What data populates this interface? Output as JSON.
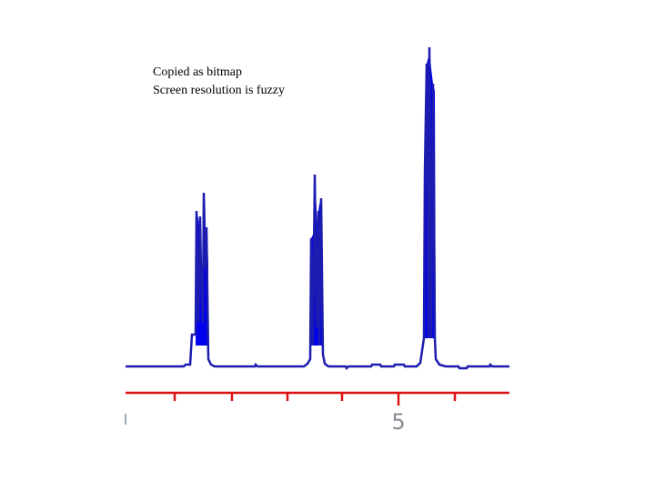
{
  "annotations": [
    "Copied as bitmap",
    "Screen resolution is fuzzy"
  ],
  "axis": {
    "tick_label": "5"
  }
}
